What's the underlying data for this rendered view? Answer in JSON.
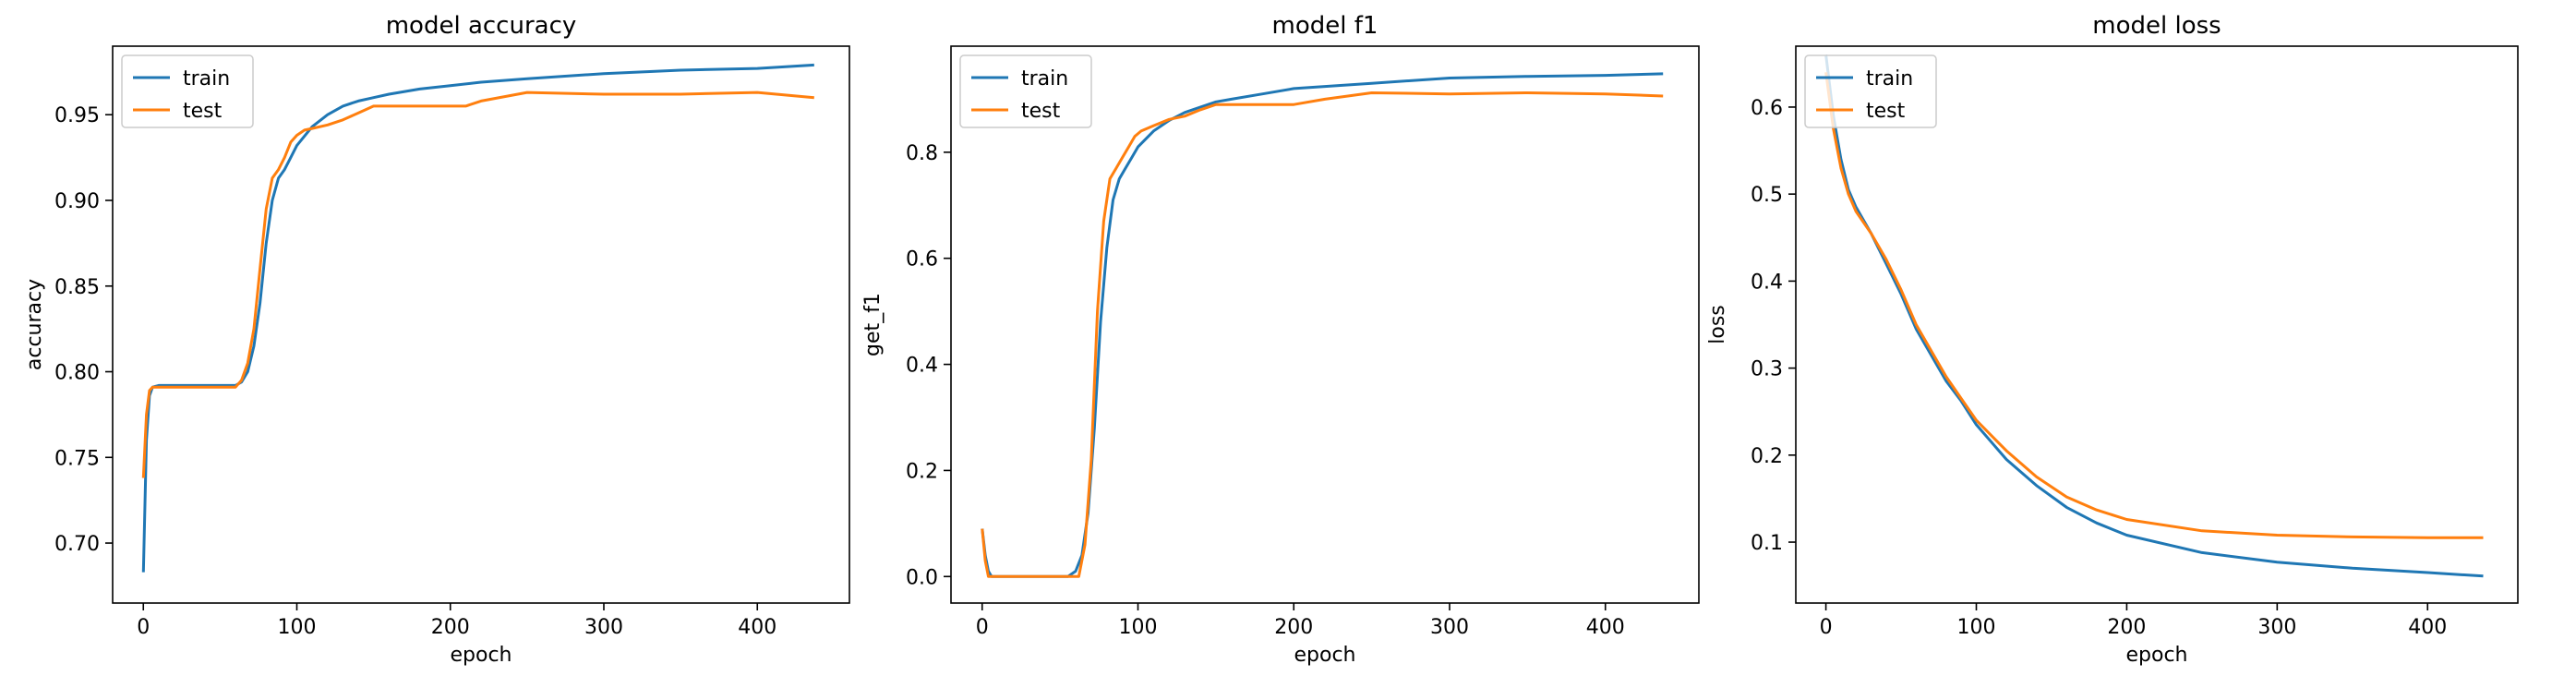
{
  "colors": {
    "train": "#1f77b4",
    "test": "#ff7f0e"
  },
  "chart_data": [
    {
      "type": "line",
      "title": "model accuracy",
      "xlabel": "epoch",
      "ylabel": "accuracy",
      "xlim": [
        -20,
        460
      ],
      "ylim": [
        0.665,
        0.99
      ],
      "xticks": [
        0,
        100,
        200,
        300,
        400
      ],
      "yticks": [
        0.7,
        0.75,
        0.8,
        0.85,
        0.9,
        0.95
      ],
      "ytick_labels": [
        "0.70",
        "0.75",
        "0.80",
        "0.85",
        "0.90",
        "0.95"
      ],
      "legend": "upper-left",
      "series": [
        {
          "name": "train",
          "x": [
            0,
            2,
            4,
            6,
            10,
            20,
            40,
            60,
            64,
            68,
            72,
            76,
            80,
            84,
            88,
            92,
            96,
            100,
            110,
            120,
            130,
            140,
            150,
            160,
            180,
            200,
            220,
            250,
            300,
            350,
            400,
            437
          ],
          "y": [
            0.683,
            0.76,
            0.786,
            0.791,
            0.792,
            0.792,
            0.792,
            0.792,
            0.794,
            0.8,
            0.815,
            0.84,
            0.875,
            0.9,
            0.913,
            0.918,
            0.925,
            0.932,
            0.943,
            0.95,
            0.955,
            0.958,
            0.96,
            0.962,
            0.965,
            0.967,
            0.969,
            0.971,
            0.974,
            0.976,
            0.977,
            0.979
          ]
        },
        {
          "name": "test",
          "x": [
            0,
            2,
            4,
            6,
            10,
            20,
            40,
            60,
            64,
            68,
            72,
            76,
            80,
            84,
            88,
            92,
            96,
            100,
            105,
            110,
            120,
            130,
            140,
            150,
            180,
            210,
            220,
            250,
            300,
            350,
            400,
            437
          ],
          "y": [
            0.738,
            0.775,
            0.789,
            0.791,
            0.791,
            0.791,
            0.791,
            0.791,
            0.795,
            0.805,
            0.825,
            0.86,
            0.895,
            0.913,
            0.918,
            0.925,
            0.934,
            0.938,
            0.941,
            0.942,
            0.944,
            0.947,
            0.951,
            0.955,
            0.955,
            0.955,
            0.958,
            0.963,
            0.962,
            0.962,
            0.963,
            0.96
          ]
        }
      ]
    },
    {
      "type": "line",
      "title": "model f1",
      "xlabel": "epoch",
      "ylabel": "get_f1",
      "xlim": [
        -20,
        460
      ],
      "ylim": [
        -0.05,
        1.0
      ],
      "xticks": [
        0,
        100,
        200,
        300,
        400
      ],
      "yticks": [
        0.0,
        0.2,
        0.4,
        0.6,
        0.8
      ],
      "ytick_labels": [
        "0.0",
        "0.2",
        "0.4",
        "0.6",
        "0.8"
      ],
      "legend": "upper-left",
      "series": [
        {
          "name": "train",
          "x": [
            0,
            2,
            4,
            6,
            10,
            30,
            55,
            60,
            64,
            68,
            72,
            76,
            80,
            84,
            88,
            92,
            96,
            100,
            110,
            120,
            130,
            140,
            150,
            160,
            180,
            200,
            250,
            300,
            350,
            400,
            437
          ],
          "y": [
            0.09,
            0.04,
            0.01,
            0.0,
            0.0,
            0.0,
            0.0,
            0.01,
            0.04,
            0.12,
            0.28,
            0.48,
            0.62,
            0.71,
            0.75,
            0.77,
            0.79,
            0.81,
            0.84,
            0.86,
            0.875,
            0.885,
            0.895,
            0.9,
            0.91,
            0.92,
            0.93,
            0.94,
            0.943,
            0.945,
            0.948
          ]
        },
        {
          "name": "test",
          "x": [
            0,
            2,
            4,
            6,
            10,
            30,
            55,
            62,
            66,
            70,
            74,
            78,
            82,
            86,
            90,
            94,
            98,
            102,
            110,
            120,
            130,
            140,
            150,
            180,
            200,
            220,
            250,
            300,
            350,
            400,
            437
          ],
          "y": [
            0.09,
            0.03,
            0.0,
            0.0,
            0.0,
            0.0,
            0.0,
            0.0,
            0.06,
            0.22,
            0.5,
            0.67,
            0.75,
            0.77,
            0.79,
            0.81,
            0.83,
            0.84,
            0.85,
            0.862,
            0.868,
            0.88,
            0.89,
            0.89,
            0.89,
            0.9,
            0.912,
            0.91,
            0.912,
            0.91,
            0.906
          ]
        }
      ]
    },
    {
      "type": "line",
      "title": "model loss",
      "xlabel": "epoch",
      "ylabel": "loss",
      "xlim": [
        -20,
        460
      ],
      "ylim": [
        0.03,
        0.67
      ],
      "xticks": [
        0,
        100,
        200,
        300,
        400
      ],
      "yticks": [
        0.1,
        0.2,
        0.3,
        0.4,
        0.5,
        0.6
      ],
      "ytick_labels": [
        "0.1",
        "0.2",
        "0.3",
        "0.4",
        "0.5",
        "0.6"
      ],
      "legend": "upper-left",
      "series": [
        {
          "name": "train",
          "x": [
            0,
            5,
            10,
            15,
            20,
            30,
            40,
            50,
            60,
            70,
            80,
            90,
            100,
            120,
            140,
            160,
            180,
            200,
            250,
            300,
            350,
            400,
            437
          ],
          "y": [
            0.66,
            0.59,
            0.54,
            0.505,
            0.485,
            0.455,
            0.42,
            0.385,
            0.345,
            0.315,
            0.285,
            0.262,
            0.235,
            0.195,
            0.165,
            0.14,
            0.122,
            0.108,
            0.088,
            0.077,
            0.07,
            0.065,
            0.061
          ]
        },
        {
          "name": "test",
          "x": [
            0,
            5,
            10,
            15,
            20,
            30,
            40,
            50,
            60,
            70,
            80,
            90,
            100,
            120,
            140,
            160,
            180,
            200,
            250,
            300,
            350,
            400,
            437
          ],
          "y": [
            0.64,
            0.575,
            0.53,
            0.5,
            0.48,
            0.455,
            0.425,
            0.39,
            0.35,
            0.32,
            0.29,
            0.265,
            0.24,
            0.205,
            0.175,
            0.152,
            0.137,
            0.126,
            0.113,
            0.108,
            0.106,
            0.105,
            0.105
          ]
        }
      ]
    }
  ]
}
